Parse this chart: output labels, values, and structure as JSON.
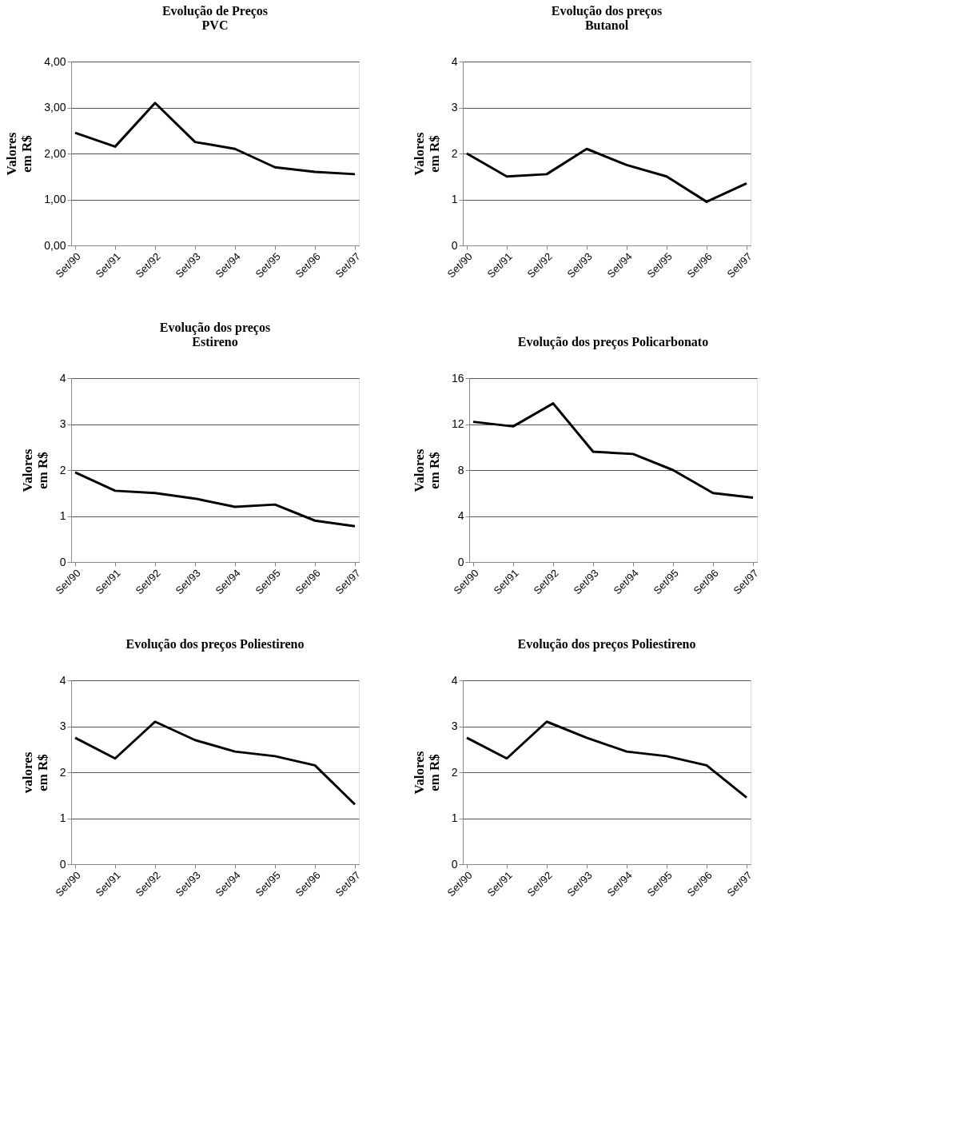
{
  "chart_data": [
    {
      "type": "line",
      "title": "Evolução de Preços\nPVC",
      "ylabel": "Valores\nem R$",
      "categories": [
        "Set/90",
        "Set/91",
        "Set/92",
        "Set/93",
        "Set/94",
        "Set/95",
        "Set/96",
        "Set/97"
      ],
      "series": [
        {
          "color": "#000000",
          "values": [
            2.45,
            2.15,
            3.1,
            2.25,
            2.1,
            1.7,
            1.6,
            1.55
          ]
        }
      ],
      "ylim": [
        0,
        4
      ],
      "yticks": [
        {
          "value": 0,
          "label": "0,00"
        },
        {
          "value": 1,
          "label": "1,00"
        },
        {
          "value": 2,
          "label": "2,00"
        },
        {
          "value": 3,
          "label": "3,00"
        },
        {
          "value": 4,
          "label": "4,00"
        }
      ],
      "grid": "y"
    },
    {
      "type": "line",
      "title": "Evolução dos preços\nButanol",
      "ylabel": "Valores\nem R$",
      "categories": [
        "Set/90",
        "Set/91",
        "Set/92",
        "Set/93",
        "Set/94",
        "Set/95",
        "Set/96",
        "Set/97"
      ],
      "series": [
        {
          "color": "#000000",
          "values": [
            2.0,
            1.5,
            1.55,
            2.1,
            1.75,
            1.5,
            0.95,
            1.35
          ]
        }
      ],
      "ylim": [
        0,
        4
      ],
      "yticks": [
        0,
        1,
        2,
        3,
        4
      ],
      "grid": "y"
    },
    {
      "type": "line",
      "title": "Evolução dos preços\nEstireno",
      "ylabel": "Valores\nem R$",
      "categories": [
        "Set/90",
        "Set/91",
        "Set/92",
        "Set/93",
        "Set/94",
        "Set/95",
        "Set/96",
        "Set/97"
      ],
      "series": [
        {
          "color": "#000000",
          "values": [
            1.95,
            1.55,
            1.5,
            1.38,
            1.2,
            1.25,
            0.9,
            0.78
          ]
        }
      ],
      "ylim": [
        0,
        4
      ],
      "yticks": [
        0,
        1,
        2,
        3,
        4
      ],
      "grid": "y"
    },
    {
      "type": "line",
      "title": "Evolução dos preços Policarbonato",
      "ylabel": "Valores\nem R$",
      "categories": [
        "Set/90",
        "Set/91",
        "Set/92",
        "Set/93",
        "Set/94",
        "Set/95",
        "Set/96",
        "Set/97"
      ],
      "series": [
        {
          "color": "#000000",
          "values": [
            12.2,
            11.8,
            13.8,
            9.6,
            9.4,
            8.0,
            6.0,
            5.6
          ]
        }
      ],
      "ylim": [
        0,
        16
      ],
      "yticks": [
        0,
        4,
        8,
        12,
        16
      ],
      "grid": "y"
    },
    {
      "type": "line",
      "title": "Evolução dos preços Poliestireno",
      "ylabel": "valores\nem R$",
      "categories": [
        "Set/90",
        "Set/91",
        "Set/92",
        "Set/93",
        "Set/94",
        "Set/95",
        "Set/96",
        "Set/97"
      ],
      "series": [
        {
          "color": "#000000",
          "values": [
            2.75,
            2.3,
            3.1,
            2.7,
            2.45,
            2.35,
            2.15,
            1.3
          ]
        }
      ],
      "ylim": [
        0,
        4
      ],
      "yticks": [
        0,
        1,
        2,
        3,
        4
      ],
      "grid": "y"
    },
    {
      "type": "line",
      "title": "Evolução dos preços Poliestireno",
      "ylabel": "Valores\nem R$",
      "categories": [
        "Set/90",
        "Set/91",
        "Set/92",
        "Set/93",
        "Set/94",
        "Set/95",
        "Set/96",
        "Set/97"
      ],
      "series": [
        {
          "color": "#000000",
          "values": [
            2.75,
            2.3,
            3.1,
            2.75,
            2.45,
            2.35,
            2.15,
            1.45
          ]
        }
      ],
      "ylim": [
        0,
        4
      ],
      "yticks": [
        0,
        1,
        2,
        3,
        4
      ],
      "grid": "y"
    }
  ]
}
